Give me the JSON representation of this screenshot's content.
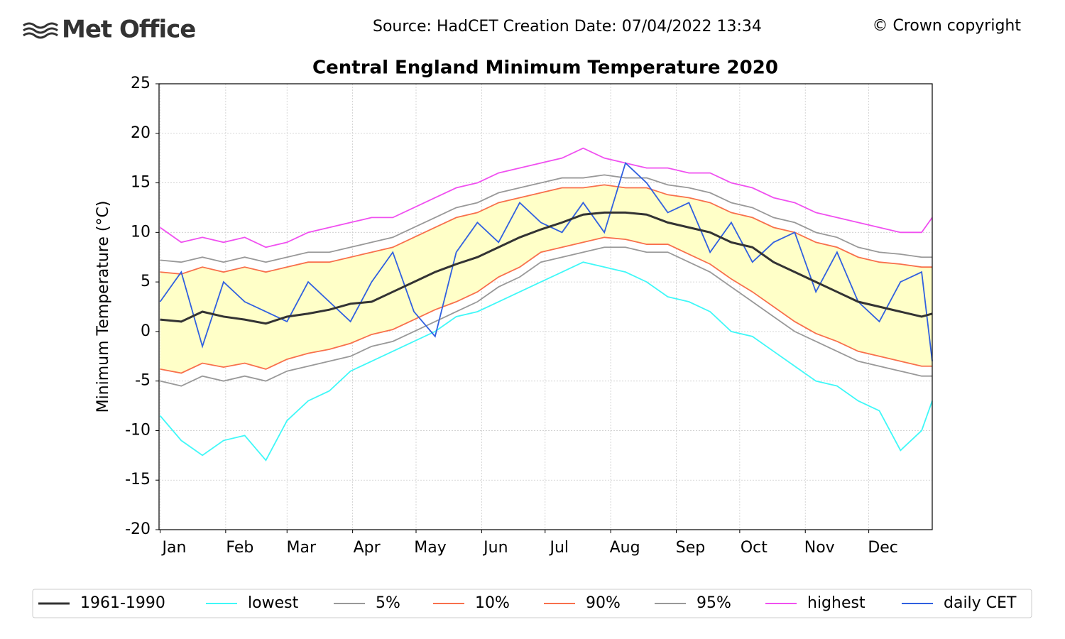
{
  "header": {
    "logo": "Met Office",
    "source": "Source: HadCET  Creation Date: 07/04/2022 13:34",
    "copyright": "© Crown copyright"
  },
  "chart_data": {
    "type": "line",
    "title": "Central England Minimum Temperature 2020",
    "y_label": "Minimum Temperature (°C)",
    "x": [
      1,
      11,
      21,
      31,
      41,
      51,
      61,
      71,
      81,
      91,
      101,
      111,
      121,
      131,
      141,
      151,
      161,
      171,
      181,
      191,
      201,
      211,
      221,
      231,
      241,
      251,
      261,
      271,
      281,
      291,
      301,
      311,
      321,
      331,
      341,
      351,
      361,
      366
    ],
    "xlim": [
      0.5,
      366
    ],
    "xticks": [
      {
        "value": 1,
        "label": "Jan"
      },
      {
        "value": 32,
        "label": "Feb"
      },
      {
        "value": 61,
        "label": "Mar"
      },
      {
        "value": 92,
        "label": "Apr"
      },
      {
        "value": 122,
        "label": "May"
      },
      {
        "value": 153,
        "label": "Jun"
      },
      {
        "value": 183,
        "label": "Jul"
      },
      {
        "value": 214,
        "label": "Aug"
      },
      {
        "value": 245,
        "label": "Sep"
      },
      {
        "value": 275,
        "label": "Oct"
      },
      {
        "value": 306,
        "label": "Nov"
      },
      {
        "value": 336,
        "label": "Dec"
      }
    ],
    "ylim": [
      -20,
      25
    ],
    "yticks": [
      -20,
      -15,
      -10,
      -5,
      0,
      5,
      10,
      15,
      20,
      25
    ],
    "grid": true,
    "band_color": "#ffffc8",
    "series": [
      {
        "name": "1961-1990",
        "color": "#333333",
        "values": [
          1.2,
          1.0,
          2.0,
          1.5,
          1.2,
          0.8,
          1.5,
          1.8,
          2.2,
          2.8,
          3.0,
          4.0,
          5.0,
          6.0,
          6.8,
          7.5,
          8.5,
          9.5,
          10.3,
          11.0,
          11.8,
          12.0,
          12.0,
          11.8,
          11.0,
          10.5,
          10.0,
          9.0,
          8.5,
          7.0,
          6.0,
          5.0,
          4.0,
          3.0,
          2.5,
          2.0,
          1.5,
          1.8
        ]
      },
      {
        "name": "lowest",
        "color": "#40f8f8",
        "values": [
          -8.5,
          -11,
          -12.5,
          -11,
          -10.5,
          -13,
          -9,
          -7,
          -6,
          -4,
          -3,
          -2,
          -1,
          0,
          1.5,
          2,
          3,
          4,
          5,
          6,
          7,
          6.5,
          6,
          5,
          3.5,
          3,
          2,
          0,
          -0.5,
          -2,
          -3.5,
          -5,
          -5.5,
          -7,
          -8,
          -12,
          -10,
          -7
        ]
      },
      {
        "name": "5%",
        "color": "#999999",
        "values": [
          -5.0,
          -5.5,
          -4.5,
          -5.0,
          -4.5,
          -5.0,
          -4.0,
          -3.5,
          -3.0,
          -2.5,
          -1.5,
          -1.0,
          0.0,
          1.0,
          2.0,
          3.0,
          4.5,
          5.5,
          7.0,
          7.5,
          8.0,
          8.5,
          8.5,
          8.0,
          8.0,
          7.0,
          6.0,
          4.5,
          3.0,
          1.5,
          0.0,
          -1.0,
          -2.0,
          -3.0,
          -3.5,
          -4.0,
          -4.5,
          -4.5
        ]
      },
      {
        "name": "10%",
        "color": "#f8704c",
        "values": [
          -3.8,
          -4.2,
          -3.2,
          -3.6,
          -3.2,
          -3.8,
          -2.8,
          -2.2,
          -1.8,
          -1.2,
          -0.3,
          0.2,
          1.2,
          2.2,
          3.0,
          4.0,
          5.5,
          6.5,
          8.0,
          8.5,
          9.0,
          9.5,
          9.3,
          8.8,
          8.8,
          7.8,
          6.8,
          5.3,
          4.0,
          2.5,
          1.0,
          -0.2,
          -1.0,
          -2.0,
          -2.5,
          -3.0,
          -3.5,
          -3.5
        ]
      },
      {
        "name": "90%",
        "color": "#f8704c",
        "values": [
          6.0,
          5.8,
          6.5,
          6.0,
          6.5,
          6.0,
          6.5,
          7.0,
          7.0,
          7.5,
          8.0,
          8.5,
          9.5,
          10.5,
          11.5,
          12.0,
          13.0,
          13.5,
          14.0,
          14.5,
          14.5,
          14.8,
          14.5,
          14.5,
          13.8,
          13.5,
          13.0,
          12.0,
          11.5,
          10.5,
          10.0,
          9.0,
          8.5,
          7.5,
          7.0,
          6.8,
          6.5,
          6.5
        ]
      },
      {
        "name": "95%",
        "color": "#999999",
        "values": [
          7.2,
          7.0,
          7.5,
          7.0,
          7.5,
          7.0,
          7.5,
          8.0,
          8.0,
          8.5,
          9.0,
          9.5,
          10.5,
          11.5,
          12.5,
          13.0,
          14.0,
          14.5,
          15.0,
          15.5,
          15.5,
          15.8,
          15.5,
          15.5,
          14.8,
          14.5,
          14.0,
          13.0,
          12.5,
          11.5,
          11.0,
          10.0,
          9.5,
          8.5,
          8.0,
          7.8,
          7.5,
          7.5
        ]
      },
      {
        "name": "highest",
        "color": "#f050f0",
        "values": [
          10.5,
          9.0,
          9.5,
          9.0,
          9.5,
          8.5,
          9.0,
          10.0,
          10.5,
          11.0,
          11.5,
          11.5,
          12.5,
          13.5,
          14.5,
          15.0,
          16.0,
          16.5,
          17.0,
          17.5,
          18.5,
          17.5,
          17.0,
          16.5,
          16.5,
          16.0,
          16.0,
          15.0,
          14.5,
          13.5,
          13.0,
          12.0,
          11.5,
          11.0,
          10.5,
          10.0,
          10.0,
          11.5
        ]
      },
      {
        "name": "daily CET",
        "color": "#3060e0",
        "values": [
          3,
          6,
          -1.5,
          5,
          3,
          2,
          1,
          5,
          3,
          1,
          5,
          8,
          2,
          -0.5,
          8,
          11,
          9,
          13,
          11,
          10,
          13,
          10,
          17,
          15,
          12,
          13,
          8,
          11,
          7,
          9,
          10,
          4,
          8,
          3,
          1,
          5,
          6,
          -3
        ]
      }
    ]
  }
}
